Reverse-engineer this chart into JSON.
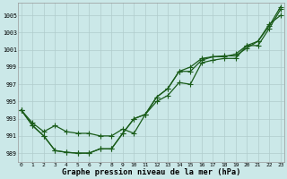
{
  "xlabel": "Graphe pression niveau de la mer (hPa)",
  "background_color": "#cbe8e8",
  "grid_color": "#b0cccc",
  "line_color": "#1a5c1a",
  "ylim": [
    988.0,
    1006.5
  ],
  "xlim": [
    -0.3,
    23.3
  ],
  "yticks": [
    989,
    991,
    993,
    995,
    997,
    999,
    1001,
    1003,
    1005
  ],
  "x_ticks": [
    0,
    1,
    2,
    3,
    4,
    5,
    6,
    7,
    8,
    9,
    10,
    11,
    12,
    13,
    14,
    15,
    16,
    17,
    18,
    19,
    20,
    21,
    22,
    23
  ],
  "series1": [
    994.0,
    992.2,
    991.0,
    989.3,
    989.1,
    989.0,
    989.0,
    989.5,
    989.5,
    991.3,
    993.0,
    993.5,
    995.0,
    995.7,
    997.2,
    997.0,
    999.5,
    999.8,
    1000.0,
    1000.0,
    1001.5,
    1001.5,
    1003.5,
    1005.7
  ],
  "series2": [
    994.0,
    992.5,
    991.5,
    992.2,
    991.5,
    991.3,
    991.3,
    991.0,
    991.0,
    991.8,
    991.3,
    993.5,
    995.5,
    996.5,
    998.5,
    999.0,
    1000.0,
    1000.2,
    1000.2,
    1000.5,
    1001.5,
    1002.0,
    1004.0,
    1005.0
  ],
  "series3": [
    994.0,
    992.2,
    991.0,
    989.3,
    989.1,
    989.0,
    989.0,
    989.5,
    989.5,
    991.3,
    993.0,
    993.5,
    995.5,
    996.5,
    998.5,
    998.5,
    999.8,
    1000.2,
    1000.3,
    1000.3,
    1001.2,
    1002.0,
    1003.8,
    1006.0
  ]
}
